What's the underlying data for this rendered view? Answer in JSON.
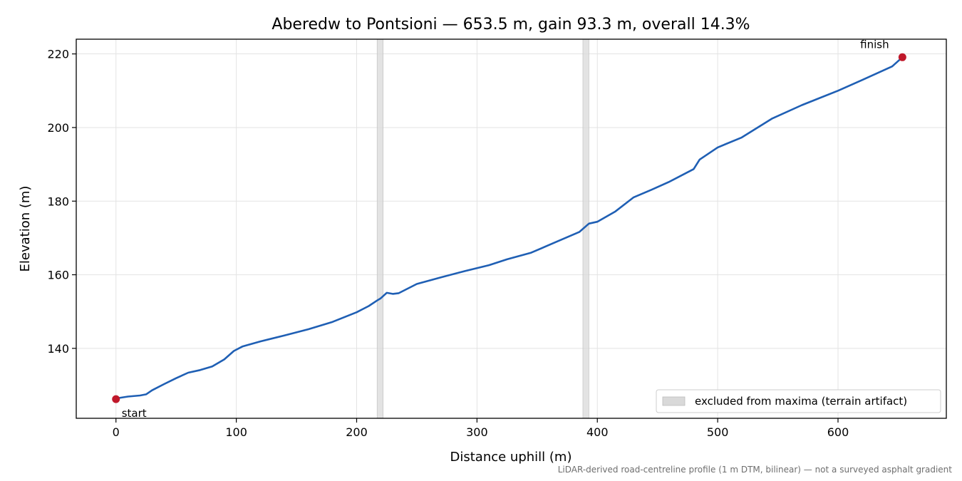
{
  "chart_data": {
    "type": "line",
    "title": "Aberedw to Pontsioni — 653.5 m, gain 93.3 m, overall 14.3%",
    "xlabel": "Distance uphill (m)",
    "ylabel": "Elevation (m)",
    "xlim": [
      -33,
      690
    ],
    "ylim": [
      121,
      224
    ],
    "xticks": [
      0,
      100,
      200,
      300,
      400,
      500,
      600
    ],
    "yticks": [
      140,
      160,
      180,
      200,
      220
    ],
    "grid": true,
    "legend_position": "lower-right",
    "line_color": "#1f5fb4",
    "marker_color": "#c0182a",
    "band_color": "#d9d9d9",
    "series": [
      {
        "x": [
          0,
          10,
          20,
          25,
          30,
          40,
          50,
          60,
          70,
          80,
          90,
          98,
          105,
          120,
          140,
          160,
          180,
          200,
          210,
          217,
          220,
          225,
          230,
          235,
          250,
          270,
          290,
          310,
          325,
          345,
          365,
          385,
          393,
          400,
          415,
          430,
          445,
          460,
          480,
          485,
          500,
          520,
          545,
          570,
          600,
          620,
          645,
          653.5
        ],
        "y": [
          126.4,
          126.9,
          127.2,
          127.5,
          128.6,
          130.3,
          131.9,
          133.4,
          134.1,
          135.1,
          137.0,
          139.3,
          140.5,
          141.9,
          143.5,
          145.2,
          147.2,
          149.8,
          151.5,
          153.0,
          153.6,
          155.1,
          154.8,
          155.0,
          157.5,
          159.3,
          161.0,
          162.6,
          164.2,
          166.0,
          168.8,
          171.6,
          173.9,
          174.4,
          177.2,
          181.0,
          183.1,
          185.3,
          188.7,
          191.3,
          194.6,
          197.3,
          202.4,
          206.1,
          210.0,
          212.9,
          216.6,
          219.1
        ]
      }
    ],
    "excluded_ranges": [
      [
        217,
        222
      ],
      [
        388,
        393
      ]
    ],
    "legend": [
      {
        "label": "excluded from maxima (terrain artifact)"
      }
    ],
    "annotations": [
      {
        "text": "start",
        "x": 0,
        "y": 126.2
      },
      {
        "text": "finish",
        "x": 653.5,
        "y": 219.1
      }
    ],
    "footnote": "LiDAR-derived road-centreline profile (1 m DTM, bilinear) — not a surveyed asphalt gradient"
  }
}
